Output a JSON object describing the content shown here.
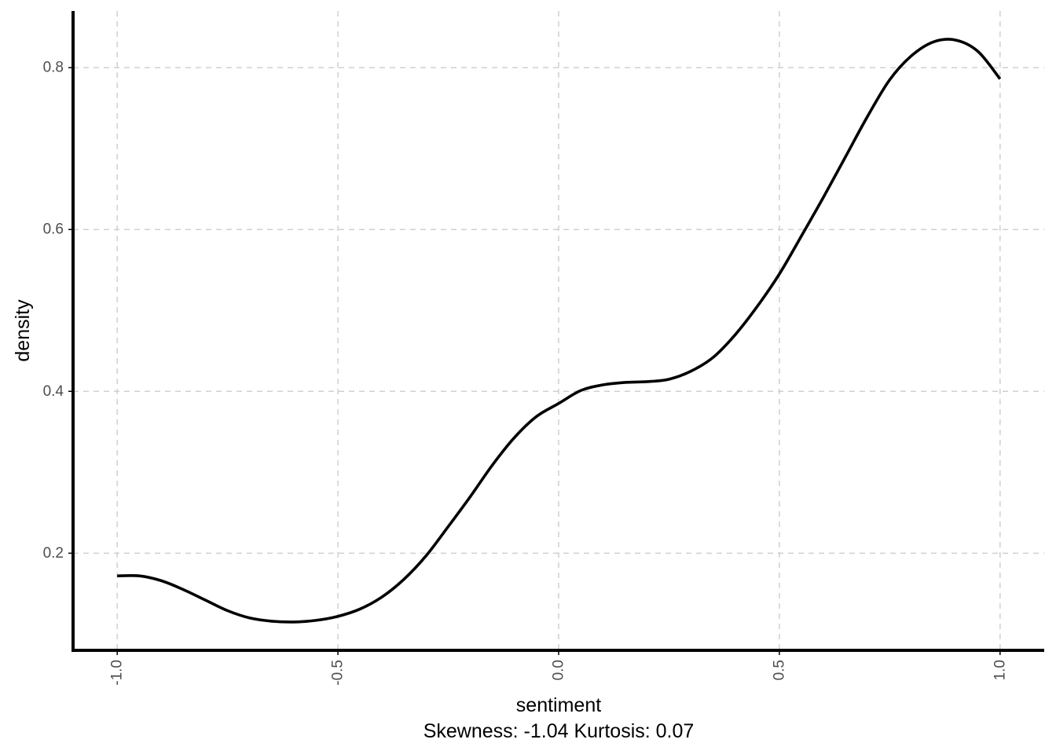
{
  "chart_data": {
    "type": "line",
    "title": "",
    "xlabel": "sentiment",
    "ylabel": "density",
    "caption": "Skewness: -1.04 Kurtosis: 0.07",
    "xlim": [
      -1.1,
      1.1
    ],
    "ylim": [
      0.08,
      0.87
    ],
    "x_ticks": [
      -1.0,
      -0.5,
      0.0,
      0.5,
      1.0
    ],
    "x_tick_labels": [
      "-1.0",
      "-0.5",
      "0.0",
      "0.5",
      "1.0"
    ],
    "y_ticks": [
      0.2,
      0.4,
      0.6,
      0.8
    ],
    "y_tick_labels": [
      "0.2",
      "0.4",
      "0.6",
      "0.8"
    ],
    "grid": true,
    "line_color": "#000000",
    "series": [
      {
        "x": [
          -1.0,
          -0.95,
          -0.9,
          -0.85,
          -0.8,
          -0.75,
          -0.7,
          -0.65,
          -0.6,
          -0.55,
          -0.5,
          -0.45,
          -0.4,
          -0.35,
          -0.3,
          -0.25,
          -0.2,
          -0.15,
          -0.1,
          -0.05,
          0.0,
          0.05,
          0.1,
          0.15,
          0.2,
          0.25,
          0.3,
          0.35,
          0.4,
          0.45,
          0.5,
          0.55,
          0.6,
          0.65,
          0.7,
          0.75,
          0.8,
          0.85,
          0.9,
          0.95,
          1.0
        ],
        "y": [
          0.172,
          0.172,
          0.166,
          0.155,
          0.142,
          0.129,
          0.12,
          0.116,
          0.115,
          0.117,
          0.122,
          0.131,
          0.146,
          0.168,
          0.197,
          0.233,
          0.27,
          0.309,
          0.343,
          0.369,
          0.385,
          0.401,
          0.408,
          0.411,
          0.412,
          0.415,
          0.425,
          0.442,
          0.47,
          0.505,
          0.545,
          0.592,
          0.64,
          0.69,
          0.74,
          0.785,
          0.815,
          0.832,
          0.834,
          0.82,
          0.786
        ]
      }
    ]
  }
}
